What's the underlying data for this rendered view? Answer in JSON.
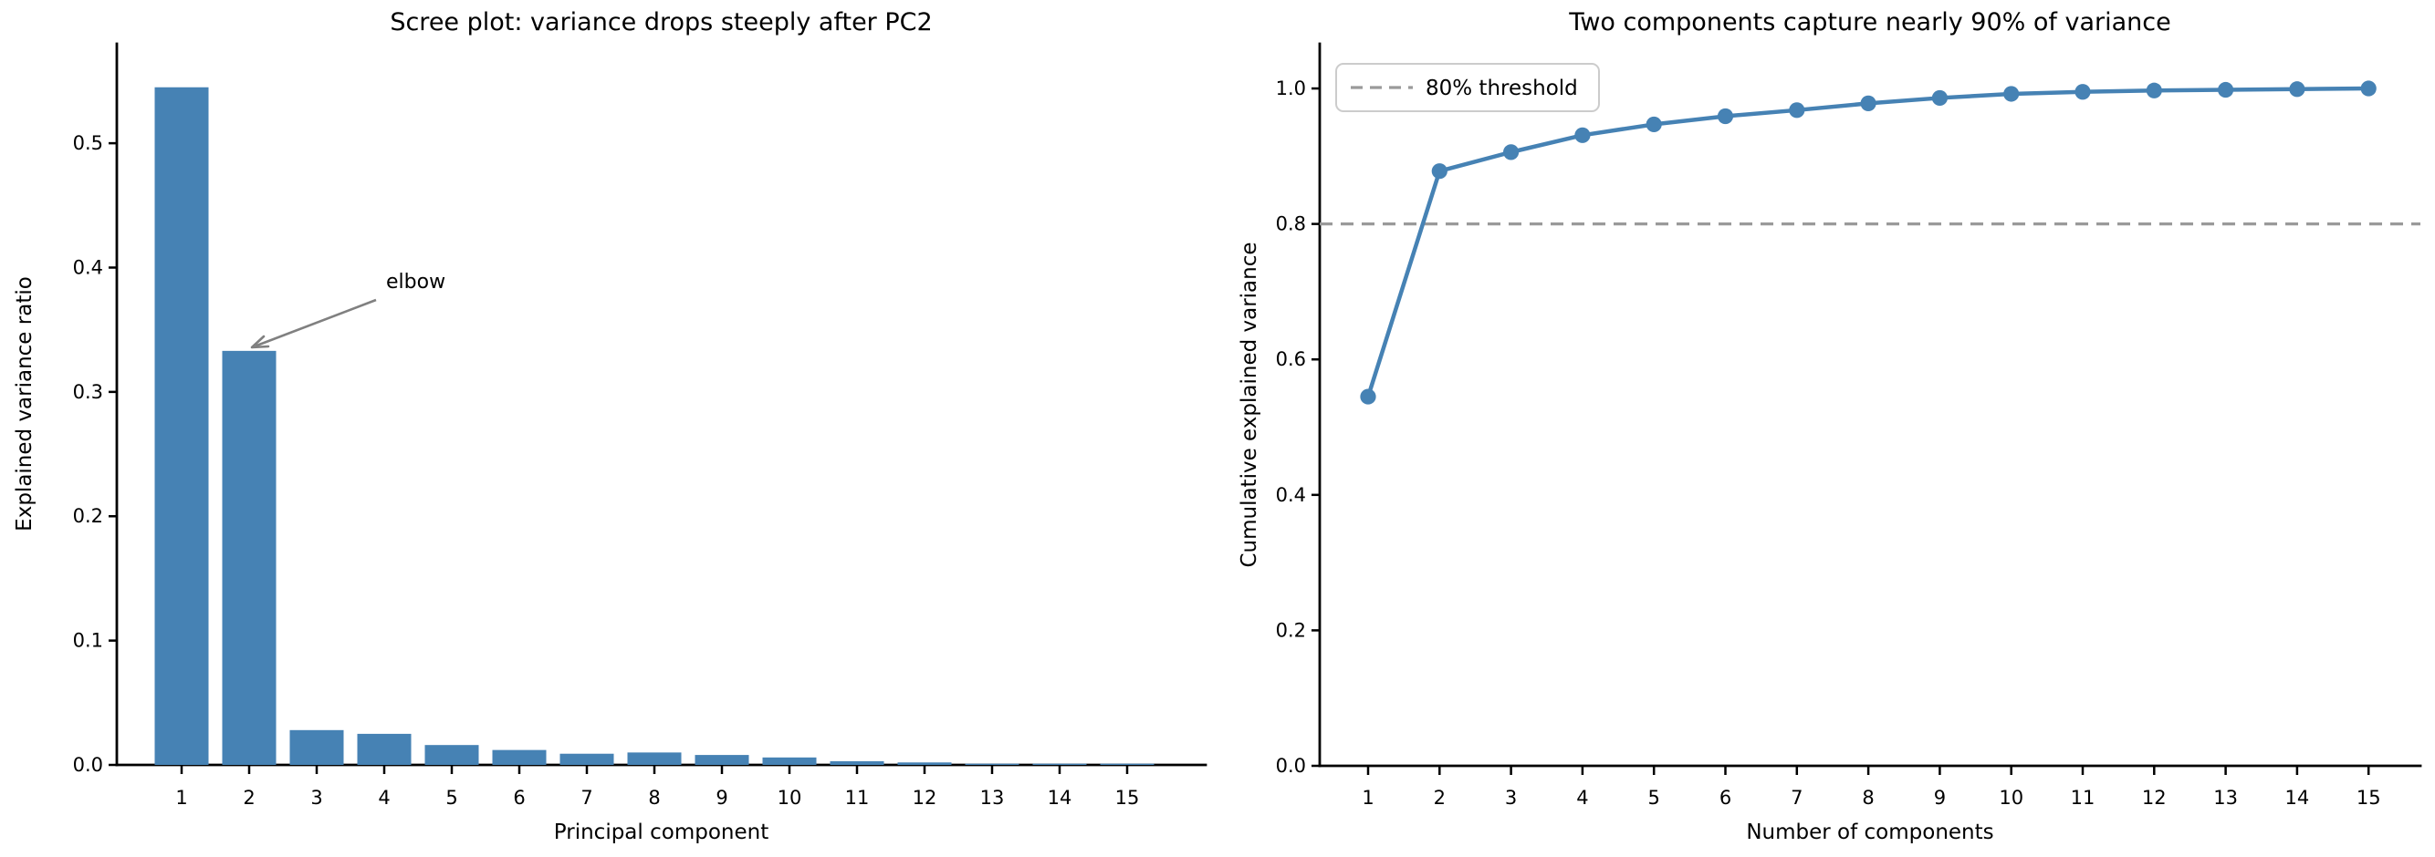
{
  "figure": {
    "background": "#ffffff",
    "accent_color": "#4682B4",
    "threshold_color": "#9a9a9a",
    "annotation_color": "#808080"
  },
  "chart_data": [
    {
      "type": "bar",
      "title": "Scree plot: variance drops steeply after PC2",
      "xlabel": "Principal component",
      "ylabel": "Explained variance ratio",
      "categories": [
        "1",
        "2",
        "3",
        "4",
        "5",
        "6",
        "7",
        "8",
        "9",
        "10",
        "11",
        "12",
        "13",
        "14",
        "15"
      ],
      "values": [
        0.545,
        0.333,
        0.028,
        0.025,
        0.016,
        0.012,
        0.009,
        0.01,
        0.008,
        0.006,
        0.003,
        0.002,
        0.001,
        0.001,
        0.001
      ],
      "ylim": [
        0,
        0.58
      ],
      "yticks": [
        {
          "v": 0.0,
          "label": "0.0"
        },
        {
          "v": 0.1,
          "label": "0.1"
        },
        {
          "v": 0.2,
          "label": "0.2"
        },
        {
          "v": 0.3,
          "label": "0.3"
        },
        {
          "v": 0.4,
          "label": "0.4"
        },
        {
          "v": 0.5,
          "label": "0.5"
        }
      ],
      "bar_color": "#4682B4",
      "grid": false,
      "legend": null,
      "annotation": {
        "text": "elbow",
        "color": "#808080",
        "target": "top of PC2 bar"
      }
    },
    {
      "type": "line",
      "title": "Two components capture nearly 90% of variance",
      "xlabel": "Number of components",
      "ylabel": "Cumulative explained variance",
      "categories": [
        "1",
        "2",
        "3",
        "4",
        "5",
        "6",
        "7",
        "8",
        "9",
        "10",
        "11",
        "12",
        "13",
        "14",
        "15"
      ],
      "values": [
        0.545,
        0.878,
        0.906,
        0.931,
        0.947,
        0.959,
        0.968,
        0.978,
        0.986,
        0.992,
        0.995,
        0.997,
        0.998,
        0.999,
        1.0
      ],
      "ylim": [
        0,
        1.066
      ],
      "yticks": [
        {
          "v": 0.0,
          "label": "0.0"
        },
        {
          "v": 0.2,
          "label": "0.2"
        },
        {
          "v": 0.4,
          "label": "0.4"
        },
        {
          "v": 0.6,
          "label": "0.6"
        },
        {
          "v": 0.8,
          "label": "0.8"
        },
        {
          "v": 1.0,
          "label": "1.0"
        }
      ],
      "line_color": "#4682B4",
      "threshold": {
        "value": 0.8,
        "label": "80% threshold",
        "color": "#9a9a9a"
      },
      "legend_position": "upper left",
      "grid": false
    }
  ]
}
